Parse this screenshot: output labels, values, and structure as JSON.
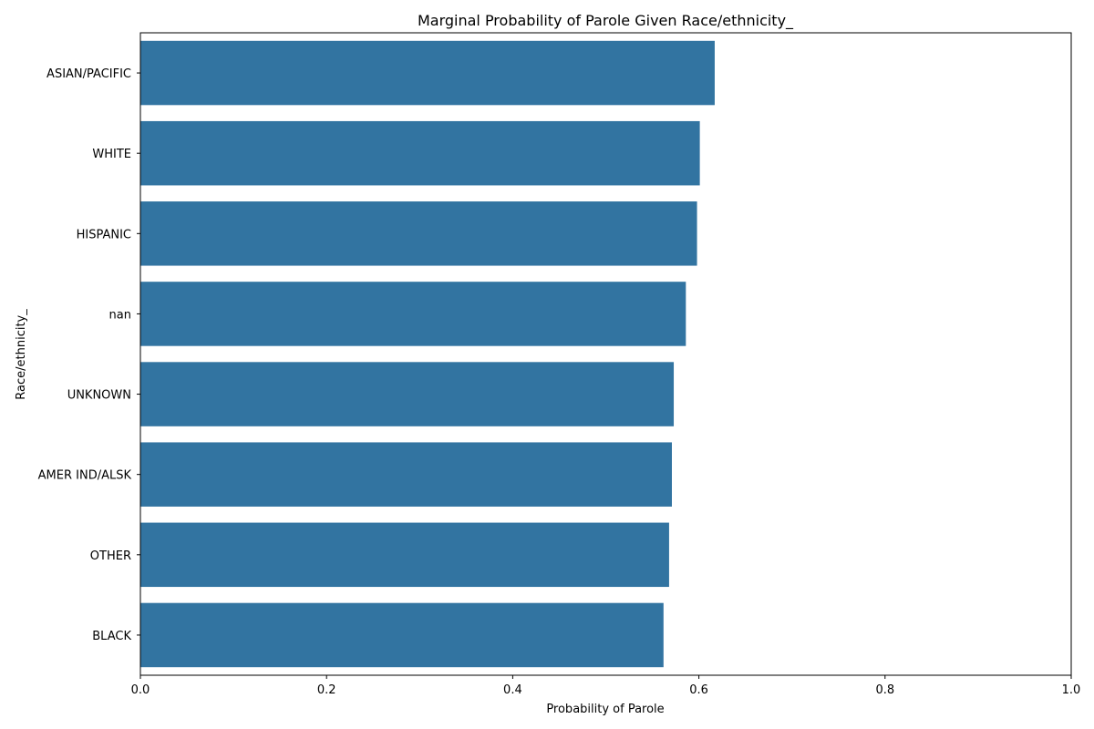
{
  "chart_data": {
    "type": "bar",
    "orientation": "horizontal",
    "title": "Marginal Probability of Parole Given Race/ethnicity_",
    "xlabel": "Probability of Parole",
    "ylabel": "Race/ethnicity_",
    "xlim": [
      0,
      1.0
    ],
    "xticks": [
      "0.0",
      "0.2",
      "0.4",
      "0.6",
      "0.8",
      "1.0"
    ],
    "categories": [
      "ASIAN/PACIFIC",
      "WHITE",
      "HISPANIC",
      "nan",
      "UNKNOWN",
      "AMER IND/ALSK",
      "OTHER",
      "BLACK"
    ],
    "values": [
      0.617,
      0.601,
      0.598,
      0.586,
      0.573,
      0.571,
      0.568,
      0.562
    ],
    "bar_color": "#3274a1",
    "grid": false,
    "legend": "none"
  }
}
